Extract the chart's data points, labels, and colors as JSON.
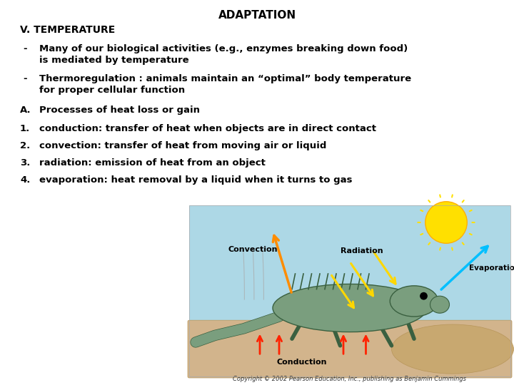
{
  "title": "ADAPTATION",
  "background_color": "#ffffff",
  "title_fontsize": 11,
  "title_fontweight": "bold",
  "text_color": "#000000",
  "section_heading": "V. TEMPERATURE",
  "bullet_items": [
    {
      "marker": "-",
      "line1": "Many of our biological activities (e.g., enzymes breaking down food)",
      "line2": "is mediated by temperature"
    },
    {
      "marker": "-",
      "line1": "Thermoregulation : animals maintain an “optimal” body temperature",
      "line2": "for proper cellular function"
    }
  ],
  "lettered_items": [
    {
      "marker": "A.",
      "text": "Processes of heat loss or gain"
    }
  ],
  "numbered_items": [
    {
      "marker": "1.",
      "text": "conduction: transfer of heat when objects are in direct contact"
    },
    {
      "marker": "2.",
      "text": "convection: transfer of heat from moving air or liquid"
    },
    {
      "marker": "3.",
      "text": "radiation: emission of heat from an object"
    },
    {
      "marker": "4.",
      "text": "evaporation: heat removal by a liquid when it turns to gas"
    }
  ],
  "copyright": "Copyright © 2002 Pearson Education, Inc., publishing as Benjamin Cummings",
  "font_family": "DejaVu Sans",
  "heading_fontsize": 10,
  "body_fontsize": 9.5,
  "sky_color": "#add8e6",
  "ground_color": "#d2b48c",
  "sun_color": "#FFE000",
  "convection_color": "#FF8C00",
  "radiation_color": "#FFD700",
  "evaporation_color": "#00BFFF",
  "conduction_color": "#FF2200",
  "lizard_color": "#7a9e7e",
  "lizard_edge": "#3a6040"
}
